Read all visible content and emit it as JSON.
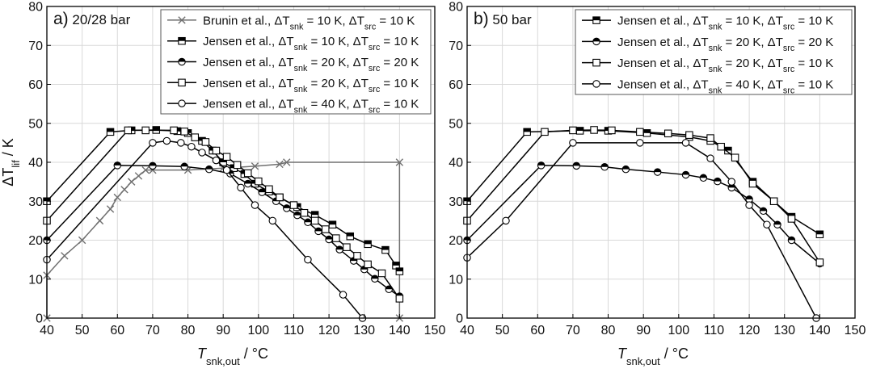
{
  "figure": {
    "shared_ylabel": "ΔT_lif / K"
  },
  "chart_data": [
    {
      "type": "line",
      "panel_label": "a)",
      "title": "20/28 bar",
      "xlabel": "T_snk,out / °C",
      "ylabel": "ΔT_lif / K",
      "xlim": [
        40,
        150
      ],
      "ylim": [
        0,
        80
      ],
      "xticks": [
        40,
        50,
        60,
        70,
        80,
        90,
        100,
        110,
        120,
        130,
        140,
        150
      ],
      "yticks": [
        0,
        10,
        20,
        30,
        40,
        50,
        60,
        70,
        80
      ],
      "grid": true,
      "legend_position": "top-right",
      "series": [
        {
          "name": "Brunin et al., ΔT_snk = 10 K, ΔT_src = 10 K",
          "marker": "x",
          "color": "#707070",
          "x": [
            40,
            40,
            45,
            50,
            55,
            58,
            60,
            62,
            64,
            66,
            68,
            70,
            80,
            90,
            99,
            106,
            108,
            140,
            140
          ],
          "y": [
            0,
            11,
            16,
            20,
            25,
            28,
            31,
            33,
            35,
            36.5,
            38,
            38,
            38,
            38.5,
            39,
            39.5,
            40,
            40,
            0
          ]
        },
        {
          "name": "Jensen et al., ΔT_snk = 10 K, ΔT_src = 10 K",
          "marker": "half-filled-square",
          "color": "#000000",
          "x": [
            40,
            58,
            64,
            71,
            77,
            80,
            84,
            87,
            90,
            93,
            96,
            99,
            103,
            106,
            111,
            116,
            121,
            126,
            131,
            136,
            139,
            140
          ],
          "y": [
            30,
            47.8,
            48.2,
            48.3,
            48,
            47.5,
            45.5,
            43,
            40,
            38.5,
            37,
            34.5,
            32.5,
            31,
            28.5,
            26.5,
            24,
            21,
            19,
            17.5,
            13.5,
            12
          ]
        },
        {
          "name": "Jensen et al., ΔT_snk = 20 K, ΔT_src = 20 K",
          "marker": "half-filled-circle",
          "color": "#000000",
          "x": [
            40,
            60,
            70,
            79,
            86,
            92,
            97,
            101,
            105,
            108,
            111,
            114,
            117,
            120,
            123,
            127,
            130,
            133,
            137,
            140
          ],
          "y": [
            20,
            39.2,
            39.1,
            38.9,
            38.2,
            37.1,
            34.5,
            32.3,
            30,
            28.2,
            26.4,
            24.6,
            22.3,
            20.2,
            17.6,
            14.7,
            12.5,
            10.1,
            7.4,
            5.6
          ]
        },
        {
          "name": "Jensen et al., ΔT_snk = 20 K, ΔT_src = 10 K",
          "marker": "open-square",
          "color": "#000000",
          "x": [
            40,
            63,
            68,
            76,
            79,
            82,
            85,
            88,
            91,
            94,
            97,
            100,
            103,
            106,
            110,
            113,
            116,
            119,
            122,
            125,
            128,
            131,
            135,
            140
          ],
          "y": [
            25,
            48.2,
            48.2,
            48.2,
            47.9,
            46.4,
            45.2,
            43,
            41.4,
            39.3,
            37.2,
            35.1,
            33.1,
            31,
            29,
            27,
            25,
            22.8,
            20.5,
            18.2,
            16,
            13.8,
            11.5,
            5
          ]
        },
        {
          "name": "Jensen et al., ΔT_snk = 40 K, ΔT_src = 10 K",
          "marker": "open-circle",
          "color": "#000000",
          "x": [
            40,
            70,
            74,
            78,
            81,
            84,
            88,
            91,
            95,
            99,
            104,
            114,
            124,
            129.5
          ],
          "y": [
            15,
            45,
            45.5,
            45,
            44,
            42.5,
            40.5,
            38,
            33.5,
            29,
            25,
            15,
            6,
            0
          ]
        }
      ]
    },
    {
      "type": "line",
      "panel_label": "b)",
      "title": "50 bar",
      "xlabel": "T_snk,out / °C",
      "ylabel": "",
      "xlim": [
        40,
        150
      ],
      "ylim": [
        0,
        80
      ],
      "xticks": [
        40,
        50,
        60,
        70,
        80,
        90,
        100,
        110,
        120,
        130,
        140,
        150
      ],
      "yticks": [
        0,
        10,
        20,
        30,
        40,
        50,
        60,
        70,
        80
      ],
      "grid": true,
      "legend_position": "top-right",
      "series": [
        {
          "name": "Jensen et al., ΔT_snk = 10 K, ΔT_src = 10 K",
          "marker": "half-filled-square",
          "color": "#000000",
          "x": [
            40,
            57,
            72,
            80,
            91,
            103,
            109,
            114,
            121,
            127,
            132,
            140
          ],
          "y": [
            30,
            47.8,
            48.1,
            48.1,
            47.5,
            46.5,
            45.5,
            43,
            35,
            30,
            26,
            21.5
          ]
        },
        {
          "name": "Jensen et al., ΔT_snk = 20 K, ΔT_src = 20 K",
          "marker": "half-filled-circle",
          "color": "#000000",
          "x": [
            40,
            61,
            71,
            79,
            85,
            94,
            102,
            107,
            111,
            115,
            120,
            124,
            128,
            132,
            140
          ],
          "y": [
            20,
            39.2,
            39.1,
            38.8,
            38.2,
            37.5,
            36.8,
            36,
            35.1,
            33.5,
            30.5,
            27.5,
            24,
            20,
            14
          ]
        },
        {
          "name": "Jensen et al., ΔT_snk = 20 K, ΔT_src = 10 K",
          "marker": "open-square",
          "color": "#000000",
          "x": [
            40,
            62,
            70,
            76,
            81,
            89,
            97,
            103,
            109,
            112,
            116,
            121,
            127,
            132,
            140
          ],
          "y": [
            25,
            47.8,
            48.2,
            48.3,
            48.2,
            47.8,
            47.4,
            47,
            46.2,
            44,
            41.2,
            34.5,
            30,
            25.5,
            14.3
          ]
        },
        {
          "name": "Jensen et al., ΔT_snk = 40 K, ΔT_src = 10 K",
          "marker": "open-circle",
          "color": "#000000",
          "x": [
            40,
            51,
            70,
            89,
            102,
            109,
            115,
            120,
            125,
            139
          ],
          "y": [
            15.5,
            25,
            45,
            45,
            45,
            41,
            35,
            29,
            24,
            0
          ]
        }
      ]
    }
  ]
}
